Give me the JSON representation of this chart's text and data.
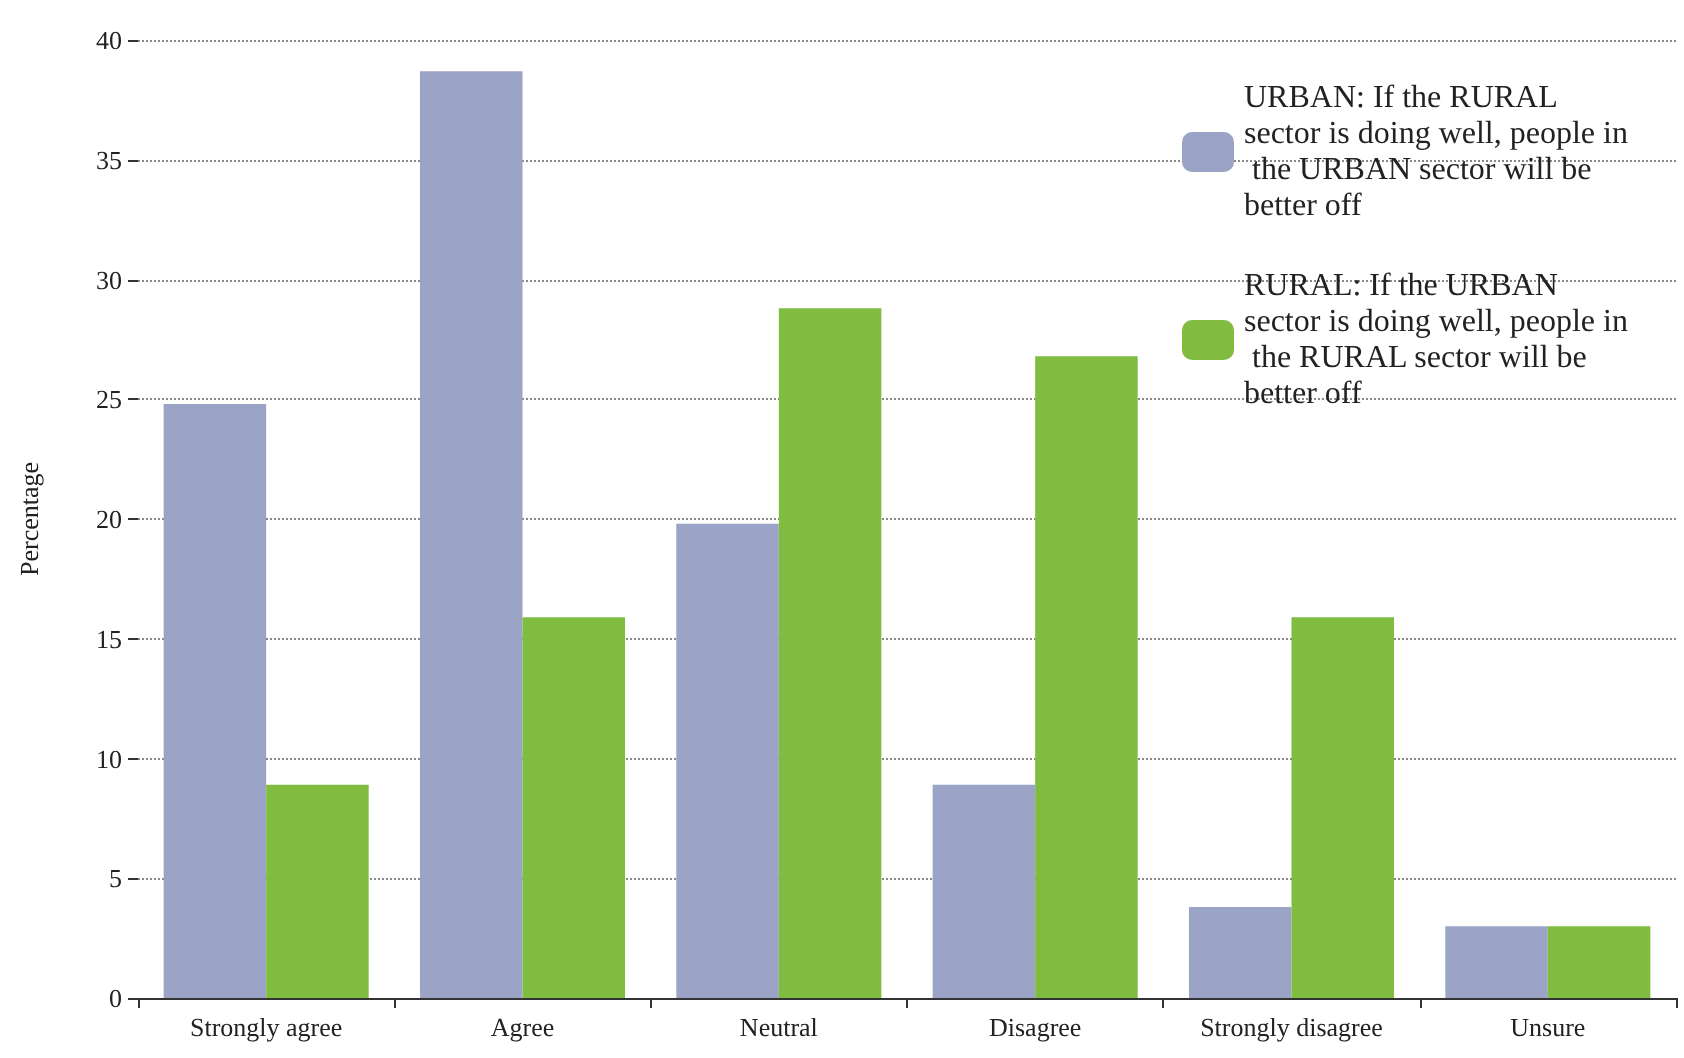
{
  "chart_data": {
    "type": "bar",
    "ylabel": "Percentage",
    "categories": [
      "Strongly agree",
      "Agree",
      "Neutral",
      "Disagree",
      "Strongly disagree",
      "Unsure"
    ],
    "series": [
      {
        "name": "URBAN: If the RURAL sector is doing well, people in the URBAN sector will be better off",
        "color": "#9ba3c7",
        "values": [
          24.8,
          38.7,
          19.8,
          8.9,
          3.8,
          3.0
        ]
      },
      {
        "name": "RURAL: If the URBAN sector is doing well, people in the RURAL sector will be better off",
        "color": "#80bc3f",
        "values": [
          8.9,
          15.9,
          28.8,
          26.8,
          15.9,
          3.0
        ]
      }
    ],
    "ylim": [
      0,
      40
    ],
    "yticks": [
      0,
      5,
      10,
      15,
      20,
      25,
      30,
      35,
      40
    ],
    "grid": "y",
    "legend": "top right"
  }
}
